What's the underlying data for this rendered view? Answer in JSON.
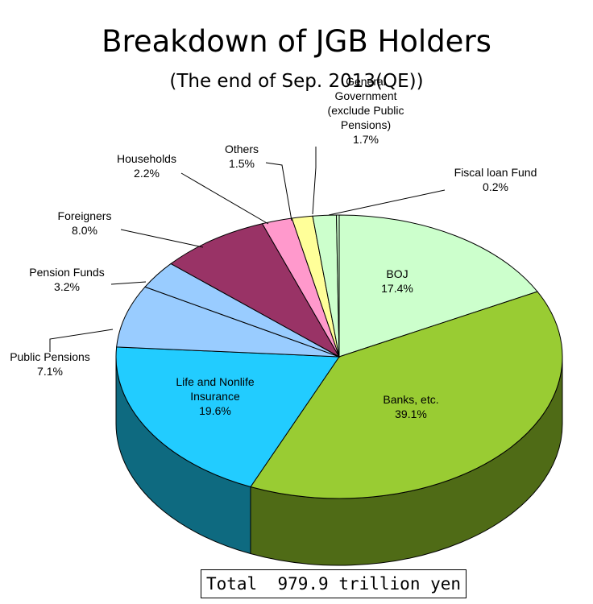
{
  "chart_data": {
    "type": "pie",
    "title": "Breakdown of JGB Holders",
    "subtitle": "(The end of Sep. 2013(QE))",
    "total_label": "Total  979.9 trillion yen",
    "slices": [
      {
        "label_lines": [
          "BOJ"
        ],
        "value": 17.4,
        "value_label": "17.4%",
        "color": "#ccffcc",
        "side": "#6b8f6b"
      },
      {
        "label_lines": [
          "Banks, etc."
        ],
        "value": 39.1,
        "value_label": "39.1%",
        "color": "#99cc33",
        "side": "#4f6b16"
      },
      {
        "label_lines": [
          "Life and Nonlife",
          "Insurance"
        ],
        "value": 19.6,
        "value_label": "19.6%",
        "color": "#22ccff",
        "side": "#0e6a80"
      },
      {
        "label_lines": [
          "Public Pensions"
        ],
        "value": 7.1,
        "value_label": "7.1%",
        "color": "#99ccff",
        "side": "#4d6a85"
      },
      {
        "label_lines": [
          "Pension Funds"
        ],
        "value": 3.2,
        "value_label": "3.2%",
        "color": "#99ccff",
        "side": "#4d6a85"
      },
      {
        "label_lines": [
          "Foreigners"
        ],
        "value": 8.0,
        "value_label": "8.0%",
        "color": "#993366",
        "side": "#4e1a34"
      },
      {
        "label_lines": [
          "Households"
        ],
        "value": 2.2,
        "value_label": "2.2%",
        "color": "#ff99cc",
        "side": "#80506a"
      },
      {
        "label_lines": [
          "Others"
        ],
        "value": 1.5,
        "value_label": "1.5%",
        "color": "#ffff99",
        "side": "#80804d"
      },
      {
        "label_lines": [
          "General",
          "Government",
          "(exclude Public",
          "Pensions)"
        ],
        "value": 1.7,
        "value_label": "1.7%",
        "color": "#ccffcc",
        "side": "#6b806b"
      },
      {
        "label_lines": [
          "Fiscal loan Fund"
        ],
        "value": 0.2,
        "value_label": "0.2%",
        "color": "#ccffcc",
        "side": "#6b806b"
      }
    ]
  }
}
